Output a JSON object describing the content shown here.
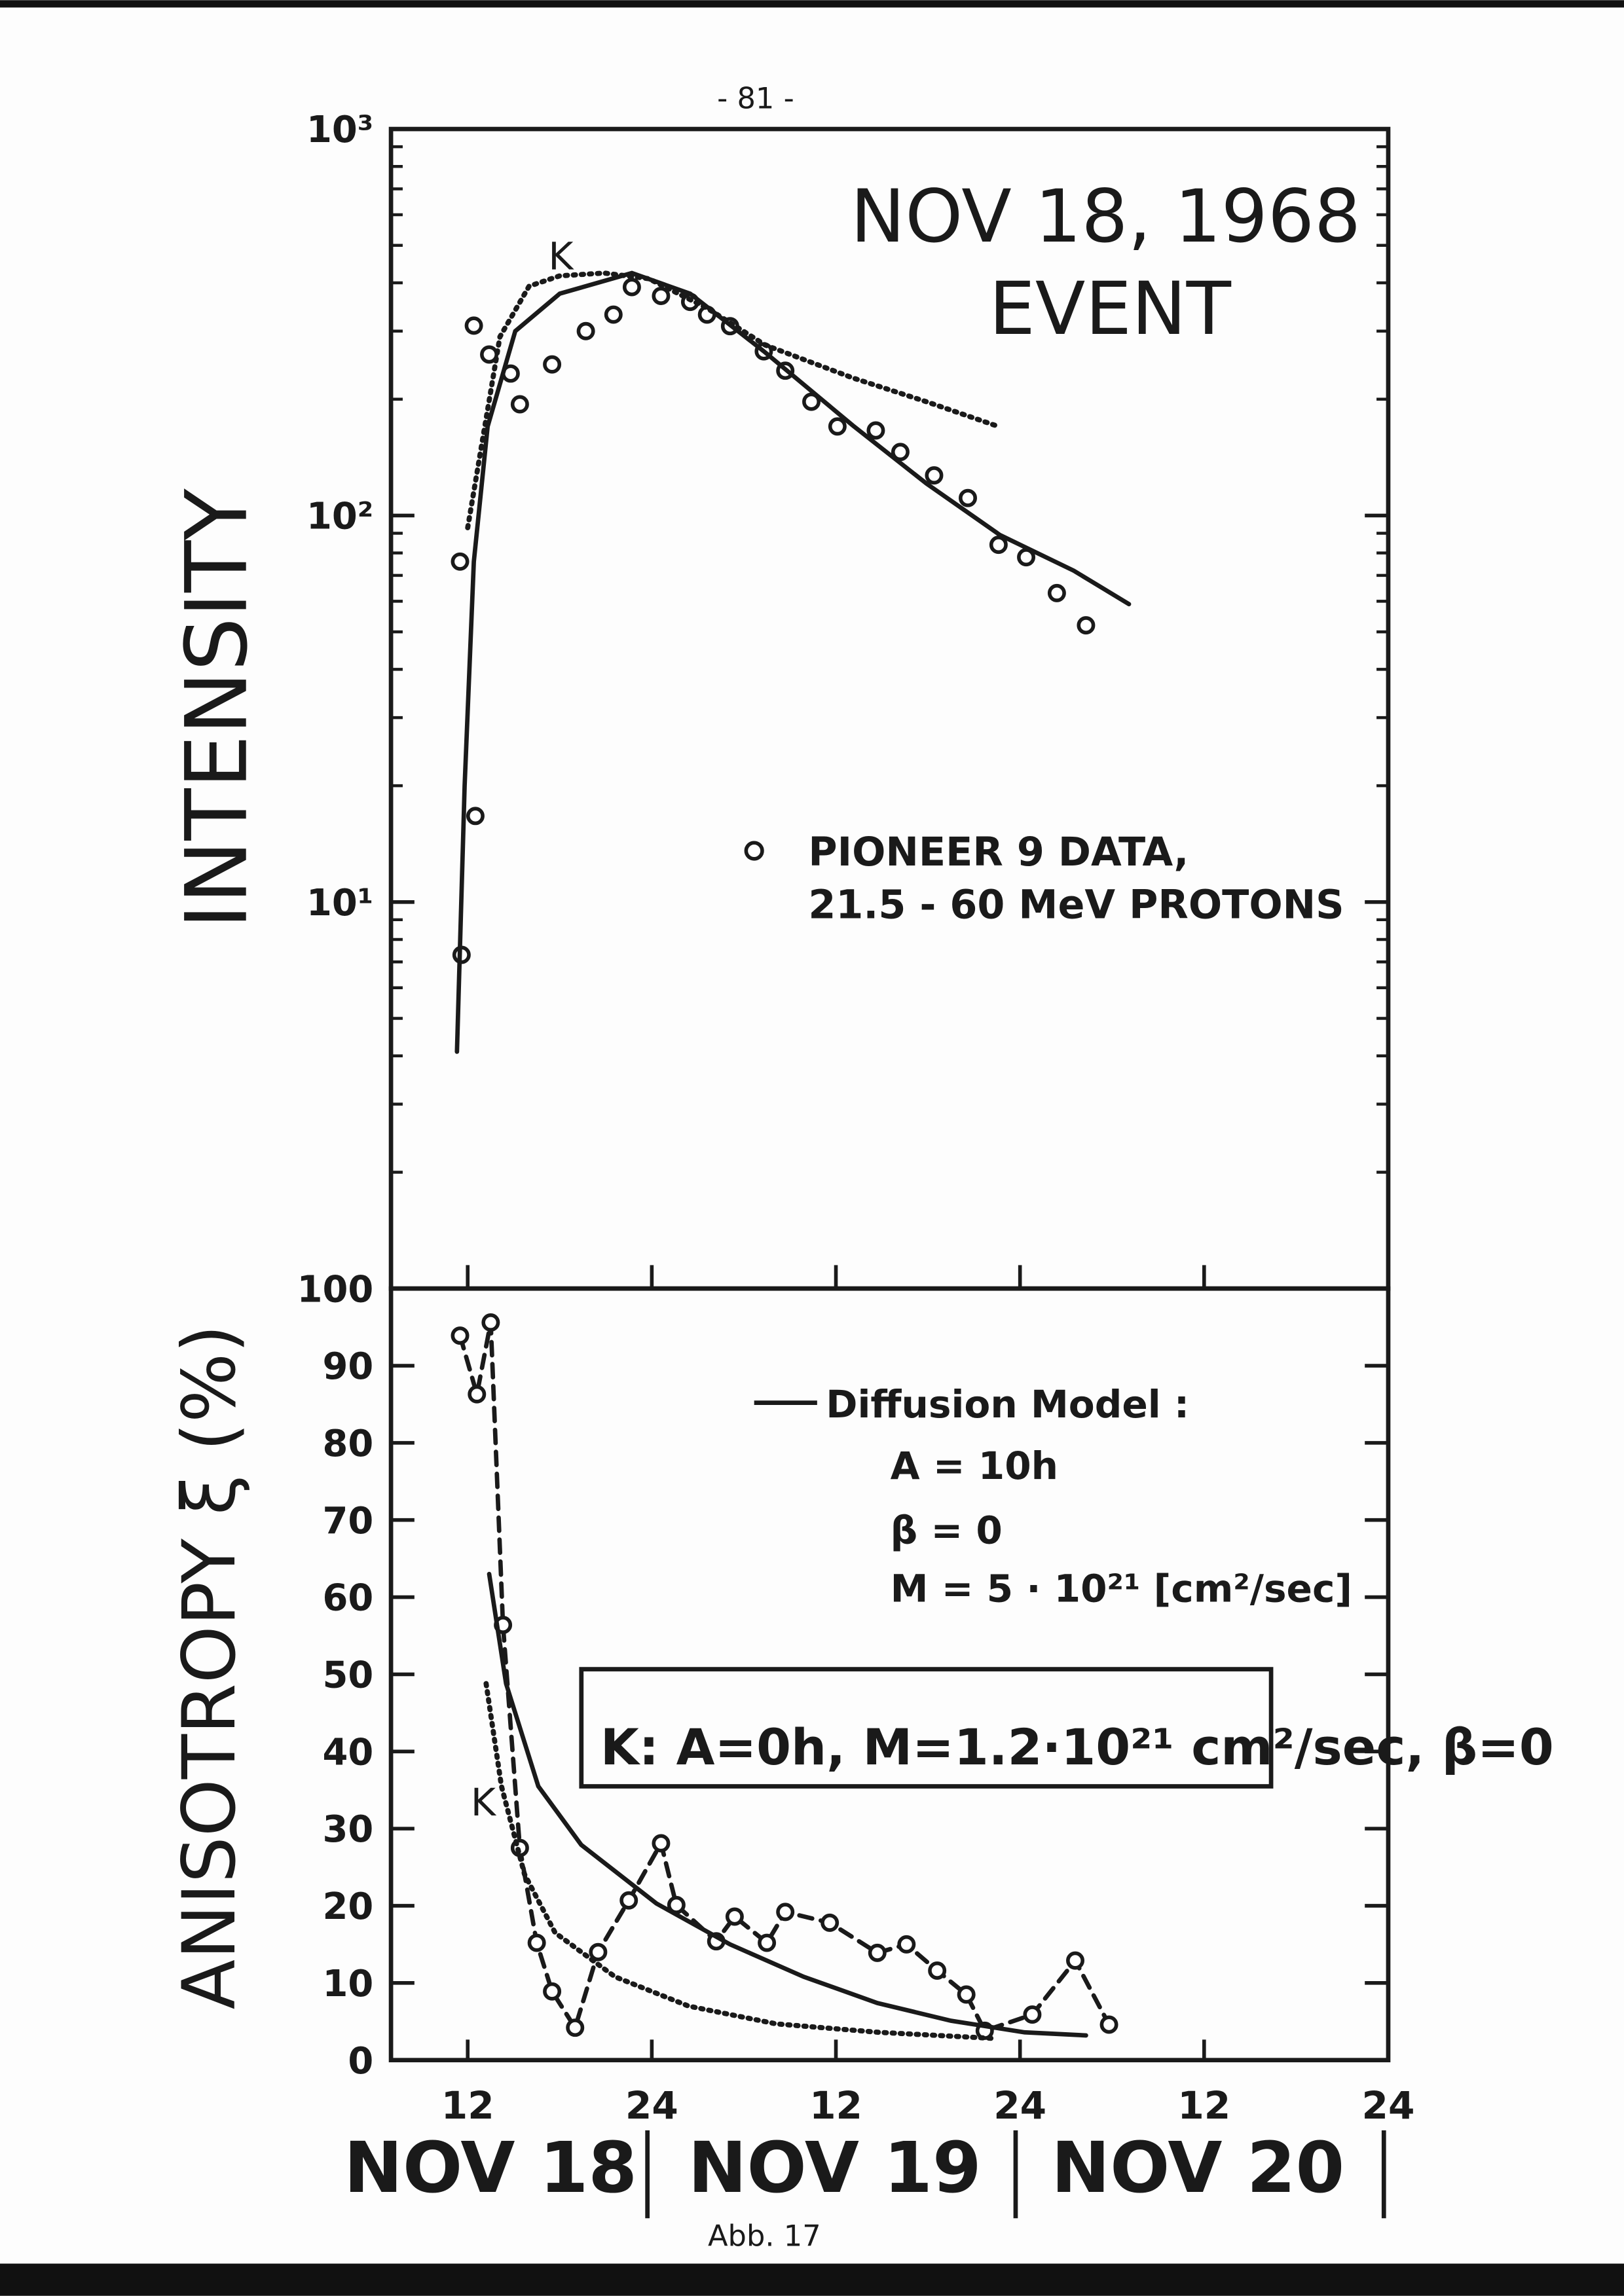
{
  "page_number": "- 81 -",
  "caption": "Abb. 17",
  "chart_data": [
    {
      "type": "scatter",
      "title": "NOV 18, 1968",
      "subtitle": "EVENT",
      "y_label": "INTENSITY",
      "log_y": true,
      "xlim": [
        7,
        72
      ],
      "ylim": [
        1,
        1000
      ],
      "yticks": [
        {
          "value": 10,
          "label": "10¹"
        },
        {
          "value": 100,
          "label": "10²"
        },
        {
          "value": 1000,
          "label": "10³"
        }
      ],
      "series": [
        {
          "name": "PIONEER 9 DATA, 21.5 - 60 MeV PROTONS",
          "color": "#1a1a1a",
          "marker": "circle",
          "line_style": "none",
          "x": [
            11.6,
            12.5,
            11.5,
            12.4,
            13.4,
            14.8,
            15.4,
            17.5,
            19.7,
            21.5,
            22.7,
            24.6,
            26.5,
            27.6,
            29.1,
            31.3,
            32.7,
            34.4,
            36.1,
            38.6,
            40.2,
            42.4,
            44.6,
            46.6,
            48.4,
            50.4,
            52.3
          ],
          "values": [
            7.3,
            16.7,
            76,
            310,
            261,
            233,
            194,
            246,
            300,
            331,
            390,
            370,
            357,
            331,
            309,
            266,
            237,
            197,
            170,
            166,
            146,
            127,
            111,
            84,
            78,
            63,
            52
          ]
        },
        {
          "color": "#1a1a1a",
          "marker": "none",
          "line_style": "solid",
          "x": [
            11.3,
            11.8,
            12.4,
            13.3,
            15.1,
            18,
            22.7,
            26.5,
            31.3,
            37.1,
            41.9,
            46.7,
            51.5,
            55.1
          ],
          "values": [
            4.1,
            20,
            76,
            170,
            300,
            375,
            424,
            375,
            266,
            171,
            121,
            89,
            72,
            59
          ]
        },
        {
          "name": "K",
          "color": "#1a1a1a",
          "marker": "none",
          "line_style": "dotted",
          "x": [
            12.0,
            14.1,
            16,
            18,
            20.9,
            23.8,
            27.6,
            31.4,
            37.1,
            41.9,
            46.4
          ],
          "values": [
            93,
            290,
            392,
            417,
            424,
            410,
            344,
            276,
            227,
            197,
            171
          ]
        }
      ]
    },
    {
      "type": "scatter",
      "y_label": "ANISOTROPY ξ (%)",
      "xlim": [
        7,
        72
      ],
      "ylim": [
        0,
        100
      ],
      "xticks": [
        12,
        {
          "value": 24,
          "label": "24"
        },
        {
          "value": 36,
          "label": "12"
        },
        {
          "value": 48,
          "label": "24"
        },
        {
          "value": 60,
          "label": "12"
        },
        {
          "value": 72,
          "label": "24"
        }
      ],
      "yticks": [
        0,
        10,
        20,
        30,
        40,
        50,
        60,
        70,
        80,
        90,
        100
      ],
      "day_labels": [
        "NOV 18",
        "NOV 19",
        "NOV 20"
      ],
      "annotations": [
        {
          "text": "A = 10h"
        },
        {
          "text": "β = 0"
        },
        {
          "text": "M = 5 · 10²¹ [cm²/sec]"
        },
        {
          "text": "K: A=0h, M=1.2·10²¹ cm²/sec, β=0"
        }
      ],
      "series": [
        {
          "color": "#1a1a1a",
          "marker": "circle",
          "line_style": "dashed",
          "x": [
            11.5,
            12.6,
            13.5,
            14.3,
            15.4,
            16.5,
            17.5,
            19.0,
            20.5,
            22.5,
            24.6,
            25.6,
            28.2,
            29.4,
            31.5,
            32.7,
            35.6,
            38.7,
            40.6,
            42.6,
            44.5,
            45.7,
            48.8,
            51.6,
            53.8
          ],
          "values": [
            93.9,
            86.3,
            95.6,
            56.4,
            27.5,
            15.2,
            8.9,
            4.2,
            14.0,
            20.7,
            28.1,
            20.1,
            15.4,
            18.6,
            15.2,
            19.2,
            17.8,
            13.9,
            15.0,
            11.6,
            8.5,
            3.8,
            5.9,
            12.9,
            4.6
          ]
        },
        {
          "name": "Diffusion Model :",
          "color": "#1a1a1a",
          "marker": "none",
          "line_style": "solid",
          "x": [
            13.4,
            14.5,
            16.6,
            19.4,
            24.3,
            29.1,
            33.9,
            38.7,
            43.5,
            48.3,
            52.3
          ],
          "values": [
            63,
            48.8,
            35.5,
            27.9,
            20.3,
            15,
            10.8,
            7.4,
            5.1,
            3.6,
            3.2
          ]
        },
        {
          "name": "K",
          "color": "#1a1a1a",
          "marker": "none",
          "line_style": "dotted",
          "x": [
            13.2,
            14.2,
            15.7,
            17.7,
            21.6,
            26.4,
            32.1,
            38.8,
            46.4
          ],
          "values": [
            48.8,
            35.5,
            24.1,
            16.5,
            10.8,
            7.0,
            4.7,
            3.6,
            2.8
          ]
        }
      ]
    }
  ]
}
